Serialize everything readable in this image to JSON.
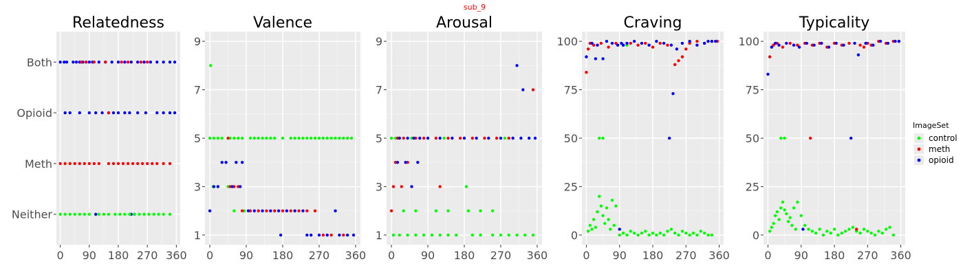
{
  "suptitle": "sub_9",
  "colors": {
    "control": "#00ff00",
    "meth": "#ff0000",
    "opioid": "#0000ff",
    "panel": "#ebebeb",
    "grid_major": "#ffffff",
    "grid_minor": "#f5f5f5"
  },
  "legend": {
    "title": "ImageSet",
    "placement": "right",
    "items": [
      {
        "key": "control",
        "label": "control"
      },
      {
        "key": "meth",
        "label": "meth"
      },
      {
        "key": "opioid",
        "label": "opioid"
      }
    ]
  },
  "chart_data": [
    {
      "type": "scatter",
      "title": "Relatedness",
      "xlabel": "",
      "ylabel": "",
      "xlim": [
        -12,
        372
      ],
      "x_ticks": [
        0,
        90,
        180,
        270,
        360
      ],
      "y_categories": [
        "Neither",
        "Meth",
        "Opioid",
        "Both"
      ],
      "ylim": [
        0.4,
        4.6
      ],
      "series": [
        {
          "name": "opioid",
          "x": [
            0,
            12,
            20,
            40,
            50,
            60,
            70,
            80,
            90,
            100,
            120,
            140,
            160,
            180,
            200,
            220,
            240,
            260,
            280,
            300,
            320,
            340,
            355,
            15,
            30,
            60,
            90,
            110,
            130,
            150,
            165,
            180,
            200,
            215,
            240,
            265,
            300,
            320,
            340,
            355,
            110,
            220,
            230
          ],
          "y": [
            4,
            4,
            4,
            4,
            4,
            4,
            4,
            4,
            4,
            4,
            4,
            4,
            4,
            4,
            4,
            4,
            4,
            4,
            4,
            4,
            4,
            4,
            4,
            3,
            3,
            3,
            3,
            3,
            3,
            3,
            3,
            3,
            3,
            3,
            3,
            3,
            3,
            3,
            3,
            3,
            1,
            1,
            1
          ]
        },
        {
          "name": "meth",
          "x": [
            65,
            80,
            105,
            140,
            190,
            210,
            250,
            270,
            150,
            0,
            15,
            30,
            45,
            60,
            75,
            90,
            105,
            120,
            150,
            165,
            180,
            195,
            210,
            225,
            240,
            255,
            270,
            285,
            300,
            320,
            340
          ],
          "y": [
            4,
            4,
            4,
            4,
            4,
            4,
            4,
            4,
            3,
            2,
            2,
            2,
            2,
            2,
            2,
            2,
            2,
            2,
            2,
            2,
            2,
            2,
            2,
            2,
            2,
            2,
            2,
            2,
            2,
            2,
            2
          ]
        },
        {
          "name": "control",
          "x": [
            0,
            15,
            30,
            45,
            60,
            75,
            90,
            120,
            135,
            150,
            170,
            185,
            200,
            215,
            230,
            245,
            260,
            275,
            290,
            305,
            320,
            340
          ],
          "y": [
            1,
            1,
            1,
            1,
            1,
            1,
            1,
            1,
            1,
            1,
            1,
            1,
            1,
            1,
            1,
            1,
            1,
            1,
            1,
            1,
            1,
            1
          ]
        }
      ]
    },
    {
      "type": "scatter",
      "title": "Valence",
      "xlabel": "",
      "ylabel": "",
      "xlim": [
        -12,
        372
      ],
      "ylim": [
        0.6,
        9.4
      ],
      "x_ticks": [
        0,
        90,
        180,
        270,
        360
      ],
      "y_ticks": [
        1,
        3,
        5,
        7,
        9
      ],
      "series": [
        {
          "name": "control",
          "x": [
            2,
            0,
            10,
            20,
            30,
            50,
            60,
            70,
            80,
            100,
            110,
            120,
            130,
            140,
            150,
            160,
            180,
            200,
            210,
            220,
            230,
            240,
            250,
            260,
            270,
            280,
            290,
            300,
            310,
            320,
            330,
            340,
            350,
            8,
            20,
            45,
            60,
            85,
            120,
            160,
            210
          ],
          "y": [
            8,
            5,
            5,
            5,
            5,
            5,
            5,
            5,
            5,
            5,
            5,
            5,
            5,
            5,
            5,
            5,
            5,
            5,
            5,
            5,
            5,
            5,
            5,
            5,
            5,
            5,
            5,
            5,
            5,
            5,
            5,
            5,
            5,
            3,
            3,
            3,
            2,
            2,
            2,
            2,
            2
          ]
        },
        {
          "name": "meth",
          "x": [
            45,
            50,
            60,
            70,
            80,
            100,
            120,
            140,
            160,
            180,
            200,
            220,
            240,
            260,
            280,
            300,
            330
          ],
          "y": [
            5,
            3,
            3,
            3,
            2,
            2,
            2,
            2,
            2,
            2,
            2,
            2,
            2,
            2,
            1,
            1,
            1
          ]
        },
        {
          "name": "opioid",
          "x": [
            0,
            10,
            20,
            30,
            40,
            55,
            65,
            75,
            80,
            95,
            110,
            130,
            150,
            170,
            175,
            190,
            210,
            230,
            240,
            250,
            270,
            290,
            310,
            320,
            340,
            355
          ],
          "y": [
            2,
            3,
            3,
            4,
            4,
            3,
            4,
            3,
            4,
            2,
            2,
            2,
            2,
            2,
            1,
            2,
            2,
            2,
            1,
            1,
            1,
            1,
            2,
            1,
            1,
            1
          ]
        }
      ]
    },
    {
      "type": "scatter",
      "title": "Arousal",
      "xlabel": "",
      "ylabel": "",
      "xlim": [
        -12,
        372
      ],
      "ylim": [
        0.6,
        9.4
      ],
      "x_ticks": [
        0,
        90,
        180,
        270,
        360
      ],
      "y_ticks": [
        1,
        3,
        5,
        7,
        9
      ],
      "series": [
        {
          "name": "control",
          "x": [
            0,
            10,
            20,
            50,
            70,
            90,
            130,
            180,
            240,
            260,
            280,
            300,
            320,
            340,
            30,
            60,
            110,
            140,
            190,
            220,
            250,
            5,
            20,
            40,
            60,
            80,
            100,
            120,
            140,
            160,
            200,
            220,
            250,
            270,
            290,
            310,
            330,
            350,
            185
          ],
          "y": [
            5,
            5,
            5,
            5,
            5,
            5,
            5,
            5,
            5,
            5,
            5,
            5,
            5,
            5,
            2,
            2,
            2,
            2,
            2,
            2,
            2,
            1,
            1,
            1,
            1,
            1,
            1,
            1,
            1,
            1,
            1,
            1,
            1,
            1,
            1,
            1,
            1,
            1,
            3
          ]
        },
        {
          "name": "meth",
          "x": [
            0,
            15,
            30,
            60,
            80,
            110,
            140,
            170,
            200,
            230,
            260,
            290,
            350,
            5,
            10,
            25,
            40,
            120
          ],
          "y": [
            2,
            5,
            5,
            5,
            5,
            5,
            5,
            5,
            5,
            5,
            5,
            5,
            7,
            3,
            4,
            3,
            4,
            3
          ]
        },
        {
          "name": "opioid",
          "x": [
            20,
            40,
            55,
            70,
            90,
            120,
            150,
            180,
            210,
            240,
            270,
            300,
            320,
            340,
            355,
            310,
            325,
            15,
            35,
            50,
            65
          ],
          "y": [
            5,
            5,
            5,
            5,
            5,
            5,
            5,
            5,
            5,
            5,
            5,
            5,
            5,
            5,
            5,
            8,
            7,
            4,
            4,
            3,
            4
          ]
        }
      ]
    },
    {
      "type": "scatter",
      "title": "Craving",
      "xlabel": "",
      "ylabel": "",
      "xlim": [
        -12,
        372
      ],
      "ylim": [
        -5,
        105
      ],
      "x_ticks": [
        0,
        90,
        180,
        270,
        360
      ],
      "y_ticks": [
        0,
        25,
        50,
        75,
        100
      ],
      "series": [
        {
          "name": "control",
          "x": [
            5,
            10,
            15,
            20,
            25,
            30,
            35,
            40,
            45,
            50,
            55,
            60,
            65,
            70,
            75,
            80,
            90,
            100,
            110,
            120,
            130,
            140,
            150,
            160,
            170,
            180,
            190,
            200,
            210,
            220,
            230,
            240,
            250,
            260,
            270,
            280,
            290,
            300,
            310,
            320,
            330,
            340,
            35,
            45,
            110,
            200
          ],
          "y": [
            2,
            5,
            3,
            8,
            4,
            12,
            20,
            15,
            10,
            6,
            14,
            8,
            3,
            18,
            5,
            15,
            0,
            1,
            0,
            2,
            1,
            0,
            1,
            2,
            0,
            1,
            0,
            1,
            0,
            2,
            3,
            1,
            0,
            2,
            1,
            0,
            1,
            0,
            2,
            1,
            0,
            0,
            50,
            50,
            98,
            99
          ]
        },
        {
          "name": "meth",
          "x": [
            0,
            5,
            10,
            20,
            40,
            60,
            80,
            100,
            120,
            140,
            160,
            180,
            200,
            220,
            240,
            250,
            260,
            270,
            280,
            300,
            320,
            340,
            355
          ],
          "y": [
            84,
            96,
            99,
            98,
            99,
            97,
            99,
            98,
            99,
            98,
            99,
            97,
            99,
            98,
            88,
            90,
            92,
            96,
            99,
            100,
            99,
            100,
            100
          ]
        },
        {
          "name": "opioid",
          "x": [
            0,
            15,
            25,
            30,
            45,
            55,
            70,
            85,
            90,
            95,
            100,
            110,
            130,
            150,
            170,
            190,
            210,
            230,
            235,
            245,
            260,
            280,
            300,
            320,
            330,
            340,
            350,
            225
          ],
          "y": [
            92,
            99,
            91,
            98,
            91,
            100,
            99,
            98,
            3,
            99,
            98,
            99,
            100,
            99,
            98,
            100,
            99,
            98,
            73,
            96,
            99,
            100,
            98,
            99,
            100,
            100,
            100,
            50
          ]
        }
      ]
    },
    {
      "type": "scatter",
      "title": "Typicality",
      "xlabel": "",
      "ylabel": "",
      "xlim": [
        -12,
        372
      ],
      "ylim": [
        -5,
        105
      ],
      "x_ticks": [
        0,
        90,
        180,
        270,
        360
      ],
      "y_ticks": [
        0,
        25,
        50,
        75,
        100
      ],
      "series": [
        {
          "name": "control",
          "x": [
            5,
            10,
            15,
            20,
            25,
            30,
            35,
            40,
            45,
            50,
            55,
            60,
            65,
            70,
            75,
            80,
            90,
            100,
            110,
            120,
            130,
            140,
            150,
            160,
            170,
            180,
            190,
            200,
            210,
            220,
            230,
            240,
            250,
            260,
            270,
            280,
            290,
            300,
            310,
            320,
            330,
            340,
            35,
            45,
            80
          ],
          "y": [
            2,
            4,
            6,
            10,
            12,
            8,
            14,
            17,
            13,
            11,
            7,
            9,
            5,
            14,
            3,
            17,
            10,
            5,
            3,
            2,
            1,
            3,
            0,
            2,
            1,
            3,
            0,
            1,
            2,
            3,
            4,
            2,
            1,
            3,
            2,
            1,
            0,
            2,
            1,
            3,
            4,
            0,
            50,
            50,
            98
          ]
        },
        {
          "name": "meth",
          "x": [
            5,
            15,
            25,
            40,
            60,
            80,
            100,
            115,
            120,
            140,
            160,
            180,
            200,
            220,
            240,
            250,
            260,
            270,
            280,
            300,
            320,
            340,
            355
          ],
          "y": [
            92,
            98,
            99,
            97,
            99,
            98,
            99,
            50,
            98,
            99,
            97,
            99,
            98,
            99,
            3,
            98,
            97,
            99,
            98,
            100,
            99,
            100,
            100
          ]
        },
        {
          "name": "opioid",
          "x": [
            0,
            10,
            20,
            30,
            50,
            70,
            85,
            95,
            105,
            125,
            145,
            165,
            185,
            205,
            225,
            235,
            245,
            265,
            285,
            305,
            325,
            345,
            355
          ],
          "y": [
            83,
            97,
            99,
            98,
            99,
            98,
            97,
            3,
            99,
            98,
            99,
            97,
            99,
            98,
            50,
            99,
            93,
            99,
            98,
            100,
            99,
            100,
            100
          ]
        }
      ]
    }
  ]
}
